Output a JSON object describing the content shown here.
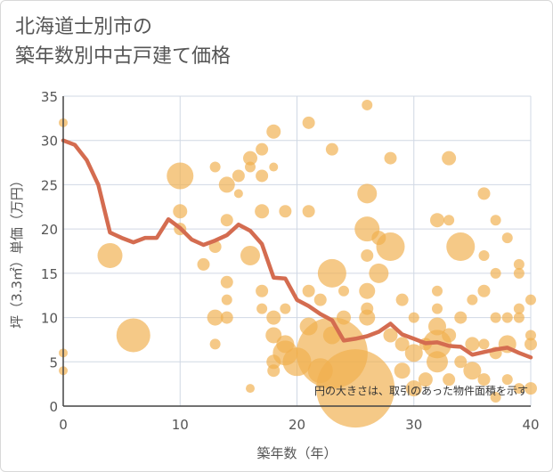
{
  "title_lines": [
    "北海道士別市の",
    "築年数別中古戸建て価格"
  ],
  "chart_data": {
    "type": "scatter",
    "title": "北海道士別市の築年数別中古戸建て価格",
    "xlabel": "築年数（年）",
    "ylabel": "坪（3.3㎡）単価（万円）",
    "xlim": [
      0,
      40
    ],
    "ylim": [
      0,
      35
    ],
    "xticks": [
      0,
      10,
      20,
      30,
      40
    ],
    "yticks": [
      0,
      5,
      10,
      15,
      20,
      25,
      30,
      35
    ],
    "grid": true,
    "annotation": "円の大きさは、取引のあった物件面積を示す",
    "colors": {
      "bubble": "#f0b04e",
      "line": "#d46c50",
      "grid": "#d0d8e4",
      "axis": "#444444"
    },
    "series": [
      {
        "name": "average",
        "type": "line",
        "x": [
          0,
          1,
          2,
          3,
          4,
          5,
          6,
          7,
          8,
          9,
          10,
          11,
          12,
          13,
          14,
          15,
          16,
          17,
          18,
          19,
          20,
          21,
          22,
          23,
          24,
          25,
          26,
          27,
          28,
          29,
          30,
          31,
          32,
          33,
          34,
          35,
          36,
          37,
          38,
          39,
          40
        ],
        "y": [
          30,
          29.5,
          27.8,
          25,
          19.6,
          19,
          18.5,
          19,
          19,
          21.1,
          20.1,
          18.8,
          18.2,
          18.7,
          19.3,
          20.5,
          19.8,
          18.3,
          14.5,
          14.4,
          12,
          11.3,
          10.4,
          9.7,
          7.4,
          7.6,
          7.9,
          8.4,
          9.3,
          8.1,
          7.6,
          7.1,
          7.2,
          6.8,
          6.7,
          5.8,
          6.1,
          6.4,
          6.6,
          6,
          5.5
        ]
      },
      {
        "name": "transactions",
        "type": "bubble",
        "points": [
          {
            "x": 0,
            "y": 32,
            "s": 5
          },
          {
            "x": 0,
            "y": 6,
            "s": 5
          },
          {
            "x": 0,
            "y": 4,
            "s": 5
          },
          {
            "x": 4,
            "y": 17,
            "s": 14
          },
          {
            "x": 6,
            "y": 8,
            "s": 19
          },
          {
            "x": 10,
            "y": 26,
            "s": 15
          },
          {
            "x": 10,
            "y": 22,
            "s": 8
          },
          {
            "x": 10,
            "y": 20,
            "s": 7
          },
          {
            "x": 12,
            "y": 16,
            "s": 7
          },
          {
            "x": 13,
            "y": 27,
            "s": 6
          },
          {
            "x": 13,
            "y": 18,
            "s": 7
          },
          {
            "x": 13,
            "y": 10,
            "s": 9
          },
          {
            "x": 13,
            "y": 7,
            "s": 6
          },
          {
            "x": 14,
            "y": 25,
            "s": 9
          },
          {
            "x": 14,
            "y": 21,
            "s": 7
          },
          {
            "x": 14,
            "y": 14,
            "s": 7
          },
          {
            "x": 14,
            "y": 12,
            "s": 6
          },
          {
            "x": 14,
            "y": 10,
            "s": 7
          },
          {
            "x": 15,
            "y": 26,
            "s": 7
          },
          {
            "x": 15,
            "y": 24,
            "s": 5
          },
          {
            "x": 16,
            "y": 28,
            "s": 8
          },
          {
            "x": 16,
            "y": 27,
            "s": 6
          },
          {
            "x": 16,
            "y": 17,
            "s": 11
          },
          {
            "x": 16,
            "y": 2,
            "s": 5
          },
          {
            "x": 17,
            "y": 29,
            "s": 7
          },
          {
            "x": 17,
            "y": 26,
            "s": 7
          },
          {
            "x": 17,
            "y": 22,
            "s": 8
          },
          {
            "x": 17,
            "y": 13,
            "s": 7
          },
          {
            "x": 17,
            "y": 11,
            "s": 6
          },
          {
            "x": 18,
            "y": 31,
            "s": 8
          },
          {
            "x": 18,
            "y": 27,
            "s": 5
          },
          {
            "x": 18,
            "y": 10,
            "s": 8
          },
          {
            "x": 18,
            "y": 8,
            "s": 9
          },
          {
            "x": 18,
            "y": 5,
            "s": 8
          },
          {
            "x": 18,
            "y": 4,
            "s": 7
          },
          {
            "x": 19,
            "y": 22,
            "s": 7
          },
          {
            "x": 19,
            "y": 11,
            "s": 6
          },
          {
            "x": 19,
            "y": 7,
            "s": 10
          },
          {
            "x": 19,
            "y": 6,
            "s": 14
          },
          {
            "x": 20,
            "y": 5,
            "s": 16
          },
          {
            "x": 21,
            "y": 32,
            "s": 7
          },
          {
            "x": 21,
            "y": 22,
            "s": 7
          },
          {
            "x": 21,
            "y": 13,
            "s": 7
          },
          {
            "x": 21,
            "y": 9,
            "s": 10
          },
          {
            "x": 22,
            "y": 12,
            "s": 7
          },
          {
            "x": 22,
            "y": 4,
            "s": 14
          },
          {
            "x": 23,
            "y": 29,
            "s": 7
          },
          {
            "x": 23,
            "y": 15,
            "s": 16
          },
          {
            "x": 23,
            "y": 6,
            "s": 40
          },
          {
            "x": 23,
            "y": 8,
            "s": 10
          },
          {
            "x": 24,
            "y": 13,
            "s": 6
          },
          {
            "x": 24,
            "y": 10,
            "s": 8
          },
          {
            "x": 25,
            "y": 2,
            "s": 44
          },
          {
            "x": 26,
            "y": 34,
            "s": 6
          },
          {
            "x": 26,
            "y": 24,
            "s": 11
          },
          {
            "x": 26,
            "y": 20,
            "s": 14
          },
          {
            "x": 26,
            "y": 17,
            "s": 7
          },
          {
            "x": 26,
            "y": 13,
            "s": 9
          },
          {
            "x": 26,
            "y": 11,
            "s": 7
          },
          {
            "x": 26,
            "y": 10,
            "s": 9
          },
          {
            "x": 27,
            "y": 19,
            "s": 8
          },
          {
            "x": 27,
            "y": 15,
            "s": 11
          },
          {
            "x": 28,
            "y": 28,
            "s": 7
          },
          {
            "x": 28,
            "y": 18,
            "s": 16
          },
          {
            "x": 28,
            "y": 8,
            "s": 8
          },
          {
            "x": 29,
            "y": 12,
            "s": 7
          },
          {
            "x": 29,
            "y": 7,
            "s": 8
          },
          {
            "x": 29,
            "y": 4,
            "s": 9
          },
          {
            "x": 30,
            "y": 10,
            "s": 6
          },
          {
            "x": 30,
            "y": 6,
            "s": 10
          },
          {
            "x": 30,
            "y": 2,
            "s": 9
          },
          {
            "x": 31,
            "y": 7,
            "s": 7
          },
          {
            "x": 31,
            "y": 3,
            "s": 8
          },
          {
            "x": 32,
            "y": 21,
            "s": 8
          },
          {
            "x": 32,
            "y": 13,
            "s": 6
          },
          {
            "x": 32,
            "y": 11,
            "s": 6
          },
          {
            "x": 32,
            "y": 9,
            "s": 10
          },
          {
            "x": 32,
            "y": 7,
            "s": 16
          },
          {
            "x": 32,
            "y": 5,
            "s": 12
          },
          {
            "x": 33,
            "y": 28,
            "s": 8
          },
          {
            "x": 33,
            "y": 21,
            "s": 6
          },
          {
            "x": 33,
            "y": 8,
            "s": 8
          },
          {
            "x": 33,
            "y": 3,
            "s": 7
          },
          {
            "x": 34,
            "y": 18,
            "s": 16
          },
          {
            "x": 34,
            "y": 10,
            "s": 7
          },
          {
            "x": 34,
            "y": 5,
            "s": 7
          },
          {
            "x": 35,
            "y": 12,
            "s": 6
          },
          {
            "x": 35,
            "y": 7,
            "s": 8
          },
          {
            "x": 35,
            "y": 4,
            "s": 10
          },
          {
            "x": 36,
            "y": 24,
            "s": 7
          },
          {
            "x": 36,
            "y": 17,
            "s": 6
          },
          {
            "x": 36,
            "y": 13,
            "s": 7
          },
          {
            "x": 36,
            "y": 7,
            "s": 6
          },
          {
            "x": 36,
            "y": 3,
            "s": 7
          },
          {
            "x": 37,
            "y": 21,
            "s": 6
          },
          {
            "x": 37,
            "y": 15,
            "s": 6
          },
          {
            "x": 37,
            "y": 10,
            "s": 6
          },
          {
            "x": 37,
            "y": 6,
            "s": 7
          },
          {
            "x": 37,
            "y": 1,
            "s": 6
          },
          {
            "x": 38,
            "y": 19,
            "s": 6
          },
          {
            "x": 38,
            "y": 10,
            "s": 6
          },
          {
            "x": 38,
            "y": 7,
            "s": 10
          },
          {
            "x": 38,
            "y": 3,
            "s": 6
          },
          {
            "x": 39,
            "y": 16,
            "s": 6
          },
          {
            "x": 39,
            "y": 15,
            "s": 6
          },
          {
            "x": 39,
            "y": 11,
            "s": 6
          },
          {
            "x": 39,
            "y": 10,
            "s": 6
          },
          {
            "x": 39,
            "y": 2,
            "s": 6
          },
          {
            "x": 40,
            "y": 12,
            "s": 6
          },
          {
            "x": 40,
            "y": 8,
            "s": 6
          },
          {
            "x": 40,
            "y": 7,
            "s": 7
          },
          {
            "x": 40,
            "y": 2,
            "s": 7
          }
        ]
      }
    ]
  }
}
